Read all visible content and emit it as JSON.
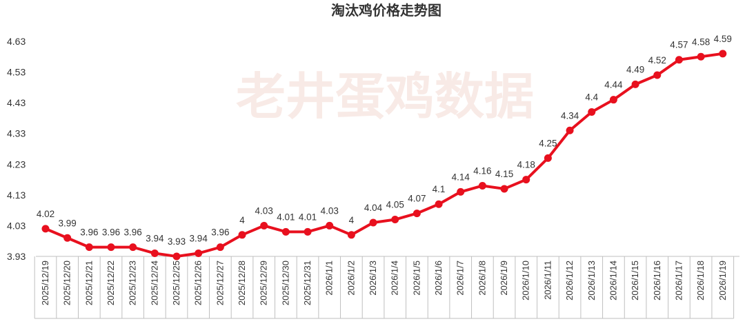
{
  "chart_data": {
    "type": "line",
    "title": "淘汰鸡价格走势图",
    "watermark": "老井蛋鸡数据",
    "ylim": [
      3.93,
      4.63
    ],
    "yticks": [
      3.93,
      4.03,
      4.13,
      4.23,
      4.33,
      4.43,
      4.53,
      4.63
    ],
    "grid": false,
    "legend": "none",
    "colors": {
      "line": "#e8101e",
      "axis": "#bfbfbf",
      "text": "#333333",
      "watermark": "#f4ddd6"
    },
    "categories": [
      "2025/12/19",
      "2025/12/20",
      "2025/12/21",
      "2025/12/22",
      "2025/12/23",
      "2025/12/24",
      "2025/12/25",
      "2025/12/26",
      "2025/12/27",
      "2025/12/28",
      "2025/12/29",
      "2025/12/30",
      "2025/12/31",
      "2026/1/1",
      "2026/1/2",
      "2026/1/3",
      "2026/1/4",
      "2026/1/5",
      "2026/1/6",
      "2026/1/7",
      "2026/1/8",
      "2026/1/9",
      "2026/1/10",
      "2026/1/11",
      "2026/1/12",
      "2026/1/13",
      "2026/1/14",
      "2026/1/15",
      "2026/1/16",
      "2026/1/17",
      "2026/1/18",
      "2026/1/19"
    ],
    "values": [
      4.02,
      3.99,
      3.96,
      3.96,
      3.96,
      3.94,
      3.93,
      3.94,
      3.96,
      4,
      4.03,
      4.01,
      4.01,
      4.03,
      4,
      4.04,
      4.05,
      4.07,
      4.1,
      4.14,
      4.16,
      4.15,
      4.18,
      4.25,
      4.34,
      4.4,
      4.44,
      4.49,
      4.52,
      4.57,
      4.58,
      4.59
    ]
  }
}
